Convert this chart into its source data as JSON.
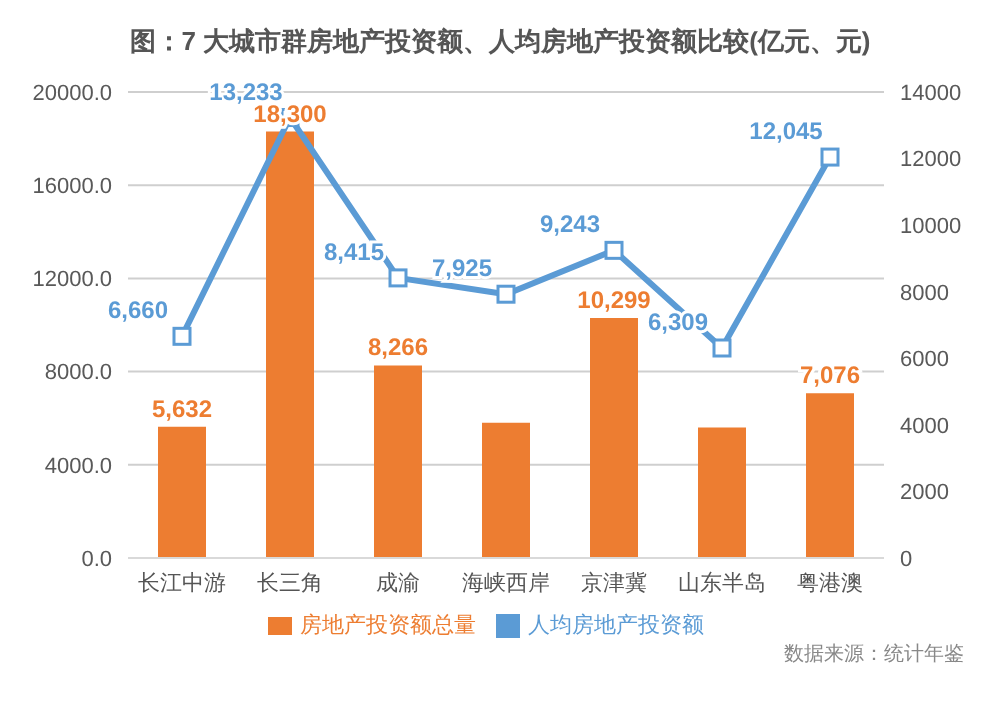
{
  "chart_data": {
    "type": "bar",
    "title": "图：7 大城市群房地产投资额、人均房地产投资额比较(亿元、元)",
    "categories": [
      "长江中游",
      "长三角",
      "成渝",
      "海峡西岸",
      "京津冀",
      "山东半岛",
      "粤港澳"
    ],
    "series": [
      {
        "name": "房地产投资额总量",
        "color": "#ed7d31",
        "values": [
          5632,
          18300,
          8266,
          5800,
          10299,
          5600,
          7076
        ],
        "value_labels": [
          "5,632",
          "18,300",
          "8,266",
          null,
          "10,299",
          null,
          "7,076"
        ]
      },
      {
        "name": "人均房地产投资额",
        "type": "line",
        "axis": "y2",
        "color": "#5b9bd5",
        "marker": "square",
        "values": [
          6660,
          13233,
          8415,
          7925,
          9243,
          6309,
          12045
        ],
        "value_labels": [
          "6,660",
          "13,233",
          "8,415",
          "7,925",
          "9,243",
          "6,309",
          "12,045"
        ]
      }
    ],
    "ylim": [
      0,
      20000
    ],
    "yticks": [
      {
        "value": 0,
        "label": "0.0"
      },
      {
        "value": 4000,
        "label": "4000.0"
      },
      {
        "value": 8000,
        "label": "8000.0"
      },
      {
        "value": 12000,
        "label": "12000.0"
      },
      {
        "value": 16000,
        "label": "16000.0"
      },
      {
        "value": 20000,
        "label": "20000.0"
      }
    ],
    "y2lim": [
      0,
      14000
    ],
    "y2ticks": [
      0,
      2000,
      4000,
      6000,
      8000,
      10000,
      12000,
      14000
    ],
    "grid": "y",
    "legend": "bottom",
    "annotations": [
      "数据来源：统计年鉴"
    ]
  }
}
